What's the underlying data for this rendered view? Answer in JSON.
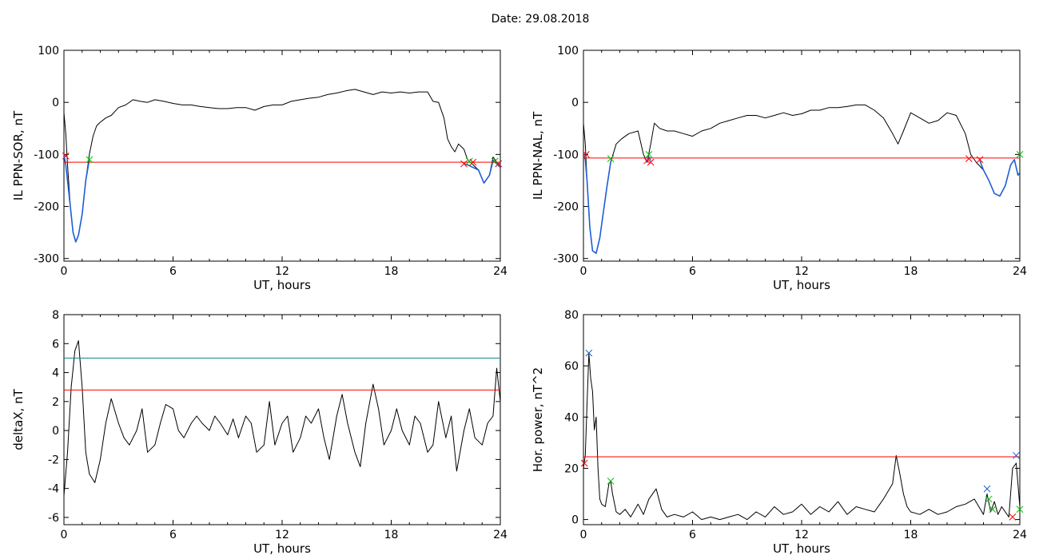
{
  "page": {
    "title": "Date:  29.08.2018"
  },
  "colors": {
    "trace": "#000000",
    "threshold": "#ff0000",
    "upper_threshold": "#008b8b",
    "segment": "#1f5fd6",
    "marker_red": "#ff0000",
    "marker_green": "#00c000",
    "marker_blue": "#1f5fd6"
  },
  "chart_data": [
    {
      "id": "sor",
      "type": "line",
      "xlabel": "UT, hours",
      "ylabel": "IL PPN-SOR, nT",
      "xlim": [
        0,
        24
      ],
      "ylim": [
        -305,
        100
      ],
      "xticks": [
        0,
        6,
        12,
        18,
        24
      ],
      "yticks": [
        100,
        0,
        -100,
        -200,
        -300
      ],
      "series": [
        {
          "role": "trace",
          "x": [
            0,
            0.1,
            0.2,
            0.35,
            0.5,
            0.65,
            0.8,
            1.0,
            1.2,
            1.4,
            1.6,
            1.8,
            2.0,
            2.3,
            2.6,
            3.0,
            3.4,
            3.8,
            4.2,
            4.6,
            5.0,
            5.5,
            6.0,
            6.5,
            7.0,
            7.5,
            8.0,
            8.5,
            9.0,
            9.5,
            10.0,
            10.5,
            11.0,
            11.5,
            12.0,
            12.5,
            13.0,
            13.5,
            14.0,
            14.5,
            15.0,
            15.5,
            16.0,
            16.5,
            17.0,
            17.5,
            18.0,
            18.5,
            19.0,
            19.5,
            20.0,
            20.3,
            20.6,
            20.9,
            21.1,
            21.3,
            21.5,
            21.7,
            22.0,
            22.2,
            22.5,
            22.8,
            23.1,
            23.4,
            23.6,
            23.8,
            24.0
          ],
          "y": [
            -20,
            -60,
            -120,
            -200,
            -250,
            -268,
            -255,
            -215,
            -150,
            -100,
            -65,
            -45,
            -38,
            -30,
            -25,
            -10,
            -5,
            5,
            2,
            0,
            5,
            2,
            -2,
            -5,
            -5,
            -8,
            -10,
            -12,
            -12,
            -10,
            -10,
            -15,
            -8,
            -5,
            -5,
            2,
            5,
            8,
            10,
            15,
            18,
            22,
            25,
            20,
            15,
            20,
            18,
            20,
            18,
            20,
            20,
            2,
            0,
            -30,
            -70,
            -85,
            -95,
            -80,
            -90,
            -110,
            -120,
            -130,
            -155,
            -140,
            -105,
            -115,
            -125
          ]
        },
        {
          "role": "segment",
          "x": [
            0,
            0.1,
            0.2,
            0.35,
            0.5,
            0.65,
            0.8,
            1.0,
            1.2,
            1.4
          ],
          "y": [
            -100,
            -120,
            -150,
            -200,
            -250,
            -268,
            -255,
            -215,
            -150,
            -110
          ]
        },
        {
          "role": "segment",
          "x": [
            22.0,
            22.2,
            22.5,
            22.8,
            23.1,
            23.4,
            23.6,
            23.8,
            24.0
          ],
          "y": [
            -118,
            -120,
            -125,
            -130,
            -155,
            -140,
            -112,
            -118,
            -125
          ]
        },
        {
          "role": "threshold",
          "value": -115
        }
      ],
      "markers": [
        {
          "x": 0.1,
          "y": -103,
          "color": "red"
        },
        {
          "x": 1.4,
          "y": -110,
          "color": "green"
        },
        {
          "x": 22.0,
          "y": -118,
          "color": "red"
        },
        {
          "x": 22.3,
          "y": -113,
          "color": "green"
        },
        {
          "x": 22.5,
          "y": -115,
          "color": "red"
        },
        {
          "x": 23.7,
          "y": -113,
          "color": "green"
        },
        {
          "x": 23.9,
          "y": -118,
          "color": "red"
        }
      ]
    },
    {
      "id": "nal",
      "type": "line",
      "xlabel": "UT, hours",
      "ylabel": "IL PPN-NAL, nT",
      "xlim": [
        0,
        24
      ],
      "ylim": [
        -305,
        100
      ],
      "xticks": [
        0,
        6,
        12,
        18,
        24
      ],
      "yticks": [
        100,
        0,
        -100,
        -200,
        -300
      ],
      "series": [
        {
          "role": "trace",
          "x": [
            0,
            0.1,
            0.2,
            0.35,
            0.5,
            0.7,
            0.9,
            1.1,
            1.3,
            1.5,
            1.8,
            2.1,
            2.5,
            3.0,
            3.3,
            3.5,
            3.7,
            3.9,
            4.2,
            4.6,
            5.0,
            5.5,
            6.0,
            6.5,
            7.0,
            7.5,
            8.0,
            8.5,
            9.0,
            9.5,
            10.0,
            10.5,
            11.0,
            11.5,
            12.0,
            12.5,
            13.0,
            13.5,
            14.0,
            14.5,
            15.0,
            15.5,
            16.0,
            16.5,
            17.0,
            17.3,
            17.6,
            18.0,
            18.5,
            19.0,
            19.5,
            20.0,
            20.5,
            21.0,
            21.3,
            21.6,
            22.0,
            22.3,
            22.6,
            22.9,
            23.2,
            23.5,
            23.7,
            23.9,
            24.0
          ],
          "y": [
            -40,
            -80,
            -150,
            -240,
            -285,
            -290,
            -260,
            -210,
            -160,
            -115,
            -80,
            -70,
            -60,
            -55,
            -100,
            -115,
            -80,
            -40,
            -50,
            -55,
            -55,
            -60,
            -65,
            -55,
            -50,
            -40,
            -35,
            -30,
            -25,
            -25,
            -30,
            -25,
            -20,
            -25,
            -22,
            -15,
            -15,
            -10,
            -10,
            -8,
            -5,
            -5,
            -15,
            -30,
            -60,
            -80,
            -55,
            -20,
            -30,
            -40,
            -35,
            -20,
            -25,
            -60,
            -100,
            -115,
            -130,
            -150,
            -175,
            -180,
            -160,
            -120,
            -110,
            -140,
            -135
          ]
        },
        {
          "role": "segment",
          "x": [
            0,
            0.1,
            0.2,
            0.35,
            0.5,
            0.7,
            0.9,
            1.1,
            1.3,
            1.5
          ],
          "y": [
            -100,
            -110,
            -150,
            -240,
            -285,
            -290,
            -260,
            -210,
            -160,
            -115
          ]
        },
        {
          "role": "segment",
          "x": [
            3.4,
            3.5,
            3.6,
            3.7
          ],
          "y": [
            -108,
            -115,
            -105,
            -112
          ]
        },
        {
          "role": "segment",
          "x": [
            21.8,
            22.0,
            22.3,
            22.6,
            22.9,
            23.2,
            23.5,
            23.7,
            23.9,
            24.0
          ],
          "y": [
            -112,
            -130,
            -150,
            -175,
            -180,
            -160,
            -120,
            -110,
            -140,
            -135
          ]
        },
        {
          "role": "threshold",
          "value": -107
        }
      ],
      "markers": [
        {
          "x": 0.15,
          "y": -100,
          "color": "red"
        },
        {
          "x": 1.5,
          "y": -108,
          "color": "green"
        },
        {
          "x": 3.5,
          "y": -112,
          "color": "red"
        },
        {
          "x": 3.6,
          "y": -100,
          "color": "green"
        },
        {
          "x": 3.7,
          "y": -115,
          "color": "red"
        },
        {
          "x": 21.2,
          "y": -108,
          "color": "red"
        },
        {
          "x": 21.8,
          "y": -110,
          "color": "red"
        },
        {
          "x": 24.0,
          "y": -100,
          "color": "green"
        }
      ]
    },
    {
      "id": "deltax",
      "type": "line",
      "xlabel": "UT, hours",
      "ylabel": "deltaX, nT",
      "xlim": [
        0,
        24
      ],
      "ylim": [
        -6.5,
        8
      ],
      "xticks": [
        0,
        6,
        12,
        18,
        24
      ],
      "yticks": [
        8,
        6,
        4,
        2,
        0,
        -2,
        -4,
        -6
      ],
      "series": [
        {
          "role": "trace",
          "x": [
            0,
            0.2,
            0.4,
            0.6,
            0.8,
            1.0,
            1.2,
            1.4,
            1.7,
            2.0,
            2.3,
            2.6,
            3.0,
            3.3,
            3.6,
            4.0,
            4.3,
            4.6,
            5.0,
            5.3,
            5.6,
            6.0,
            6.3,
            6.6,
            7.0,
            7.3,
            7.6,
            8.0,
            8.3,
            8.6,
            9.0,
            9.3,
            9.6,
            10.0,
            10.3,
            10.6,
            11.0,
            11.3,
            11.6,
            12.0,
            12.3,
            12.6,
            13.0,
            13.3,
            13.6,
            14.0,
            14.3,
            14.6,
            15.0,
            15.3,
            15.6,
            16.0,
            16.3,
            16.6,
            17.0,
            17.3,
            17.6,
            18.0,
            18.3,
            18.6,
            19.0,
            19.3,
            19.6,
            20.0,
            20.3,
            20.6,
            21.0,
            21.3,
            21.6,
            22.0,
            22.3,
            22.6,
            23.0,
            23.3,
            23.6,
            23.8,
            24.0
          ],
          "y": [
            -4.5,
            -1.5,
            3.0,
            5.5,
            6.2,
            3.0,
            -1.5,
            -3.0,
            -3.6,
            -2.0,
            0.5,
            2.2,
            0.5,
            -0.5,
            -1.0,
            0.0,
            1.5,
            -1.5,
            -1.0,
            0.5,
            1.8,
            1.5,
            0.0,
            -0.5,
            0.5,
            1.0,
            0.5,
            0.0,
            1.0,
            0.5,
            -0.3,
            0.8,
            -0.5,
            1.0,
            0.5,
            -1.5,
            -1.0,
            2.0,
            -1.0,
            0.5,
            1.0,
            -1.5,
            -0.5,
            1.0,
            0.5,
            1.5,
            -0.5,
            -2.0,
            1.0,
            2.5,
            0.5,
            -1.5,
            -2.5,
            0.5,
            3.2,
            1.5,
            -1.0,
            0.0,
            1.5,
            0.0,
            -1.0,
            1.0,
            0.5,
            -1.5,
            -1.0,
            2.0,
            -0.5,
            1.0,
            -2.8,
            0.0,
            1.5,
            -0.5,
            -1.0,
            0.5,
            1.0,
            4.3,
            2.0
          ]
        },
        {
          "role": "threshold",
          "value": 2.8
        },
        {
          "role": "upper_threshold",
          "value": 5.0
        }
      ],
      "markers": []
    },
    {
      "id": "power",
      "type": "line",
      "xlabel": "UT, hours",
      "ylabel": "Hor. power, nT^2",
      "xlim": [
        0,
        24
      ],
      "ylim": [
        -2,
        80
      ],
      "xticks": [
        0,
        6,
        12,
        18,
        24
      ],
      "yticks": [
        80,
        60,
        40,
        20,
        0
      ],
      "series": [
        {
          "role": "trace",
          "x": [
            0,
            0.1,
            0.2,
            0.3,
            0.4,
            0.5,
            0.6,
            0.7,
            0.8,
            0.9,
            1.0,
            1.2,
            1.4,
            1.5,
            1.6,
            1.8,
            2.0,
            2.3,
            2.6,
            3.0,
            3.3,
            3.6,
            4.0,
            4.3,
            4.6,
            5.0,
            5.5,
            6.0,
            6.5,
            7.0,
            7.5,
            8.0,
            8.5,
            9.0,
            9.5,
            10.0,
            10.5,
            11.0,
            11.5,
            12.0,
            12.5,
            13.0,
            13.5,
            14.0,
            14.5,
            15.0,
            15.5,
            16.0,
            16.5,
            17.0,
            17.2,
            17.4,
            17.6,
            17.8,
            18.0,
            18.5,
            19.0,
            19.5,
            20.0,
            20.5,
            21.0,
            21.5,
            22.0,
            22.2,
            22.4,
            22.6,
            22.8,
            23.0,
            23.2,
            23.4,
            23.6,
            23.8,
            24.0
          ],
          "y": [
            20,
            25,
            45,
            65,
            55,
            50,
            35,
            40,
            20,
            8,
            6,
            5,
            14,
            15,
            10,
            3,
            2,
            4,
            1,
            6,
            2,
            8,
            12,
            4,
            1,
            2,
            1,
            3,
            0,
            1,
            0,
            1,
            2,
            0,
            3,
            1,
            5,
            2,
            3,
            6,
            2,
            5,
            3,
            7,
            2,
            5,
            4,
            3,
            8,
            14,
            25,
            18,
            10,
            5,
            3,
            2,
            4,
            2,
            3,
            5,
            6,
            8,
            2,
            10,
            3,
            7,
            2,
            5,
            3,
            1,
            20,
            22,
            5
          ]
        },
        {
          "role": "threshold",
          "value": 24.5
        }
      ],
      "markers": [
        {
          "x": 0.05,
          "y": 22,
          "color": "red"
        },
        {
          "x": 0.3,
          "y": 65,
          "color": "blue"
        },
        {
          "x": 1.5,
          "y": 15,
          "color": "green"
        },
        {
          "x": 22.2,
          "y": 12,
          "color": "blue"
        },
        {
          "x": 22.3,
          "y": 8,
          "color": "green"
        },
        {
          "x": 22.5,
          "y": 4,
          "color": "green"
        },
        {
          "x": 23.6,
          "y": 1,
          "color": "red"
        },
        {
          "x": 23.8,
          "y": 25,
          "color": "blue"
        },
        {
          "x": 24.0,
          "y": 4,
          "color": "green"
        }
      ]
    }
  ]
}
